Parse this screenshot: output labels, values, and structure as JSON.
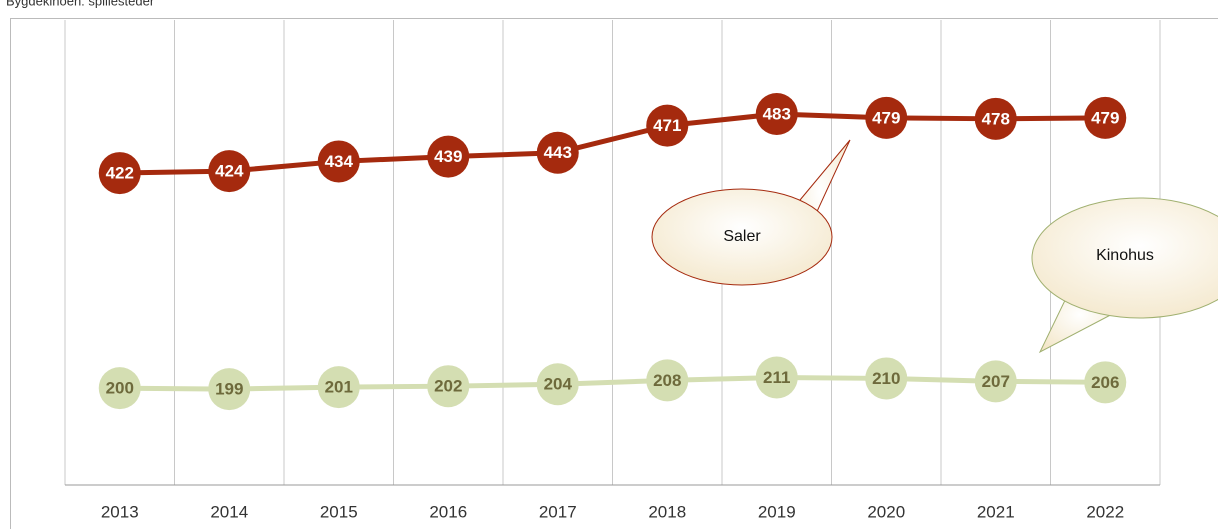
{
  "chart_data": {
    "type": "line",
    "title": "Bygdekinoen: spillesteder",
    "categories": [
      "2013",
      "2014",
      "2015",
      "2016",
      "2017",
      "2018",
      "2019",
      "2020",
      "2021",
      "2022"
    ],
    "series": [
      {
        "name": "Saler",
        "color": "#a52a0e",
        "label_color": "#ffffff",
        "values": [
          422,
          424,
          434,
          439,
          443,
          471,
          483,
          479,
          478,
          479
        ]
      },
      {
        "name": "Kinohus",
        "color": "#d4deb2",
        "label_color": "#6e6a3c",
        "values": [
          200,
          199,
          201,
          202,
          204,
          208,
          211,
          210,
          207,
          206
        ]
      }
    ],
    "ylim": [
      100,
      580
    ],
    "grid": true,
    "annotations": [
      "Saler",
      "Kinohus"
    ]
  }
}
